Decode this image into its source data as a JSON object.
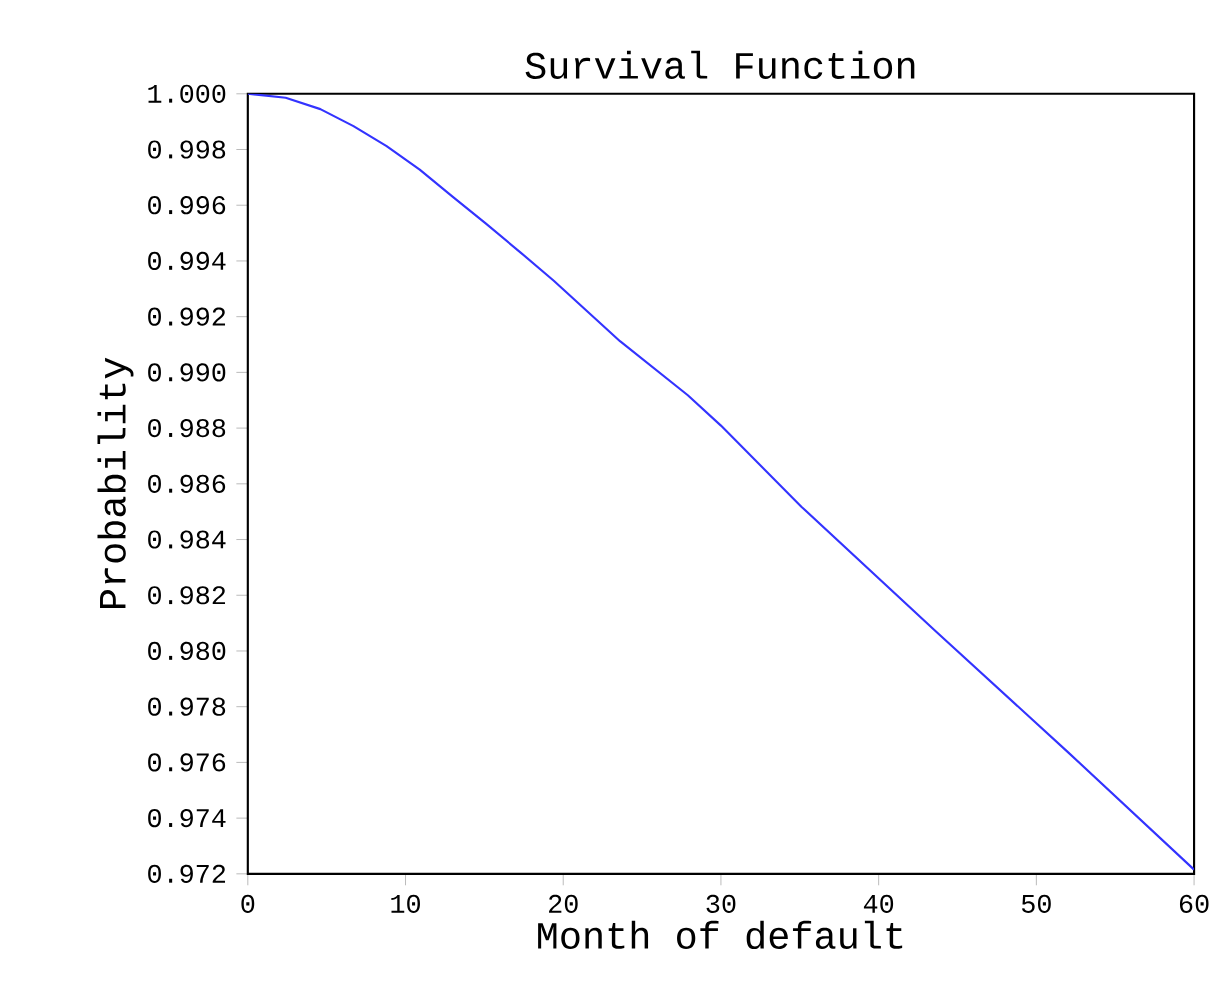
{
  "chart_data": {
    "type": "line",
    "title": "Survival Function",
    "xlabel": "Month of default",
    "ylabel": "Probability",
    "x": [
      0,
      2.4,
      4.6,
      6.7,
      8.8,
      10.9,
      13.0,
      15.1,
      17.3,
      19.4,
      23.6,
      27.9,
      30.0,
      35.1,
      43.6,
      52.0,
      60
    ],
    "series": [
      {
        "color": "#3333ff",
        "values": [
          1.0,
          0.99986,
          0.99945,
          0.99884,
          0.99812,
          0.99728,
          0.9963,
          0.99534,
          0.9943,
          0.99329,
          0.99112,
          0.98918,
          0.98809,
          0.98518,
          0.98072,
          0.97637,
          0.97215
        ]
      }
    ],
    "xlim": [
      0,
      60
    ],
    "xticks": [
      0,
      10,
      20,
      30,
      40,
      50,
      60
    ],
    "ylim": [
      0.972,
      1.0
    ],
    "yticks": [
      {
        "value": 0.972,
        "label": "0.972"
      },
      {
        "value": 0.974,
        "label": "0.974"
      },
      {
        "value": 0.976,
        "label": "0.976"
      },
      {
        "value": 0.978,
        "label": "0.978"
      },
      {
        "value": 0.98,
        "label": "0.980"
      },
      {
        "value": 0.982,
        "label": "0.982"
      },
      {
        "value": 0.984,
        "label": "0.984"
      },
      {
        "value": 0.986,
        "label": "0.986"
      },
      {
        "value": 0.988,
        "label": "0.988"
      },
      {
        "value": 0.99,
        "label": "0.990"
      },
      {
        "value": 0.992,
        "label": "0.992"
      },
      {
        "value": 0.994,
        "label": "0.994"
      },
      {
        "value": 0.996,
        "label": "0.996"
      },
      {
        "value": 0.998,
        "label": "0.998"
      },
      {
        "value": 1.0,
        "label": "1.000"
      }
    ],
    "grid": false,
    "marker": "none",
    "line_style": "solid"
  }
}
